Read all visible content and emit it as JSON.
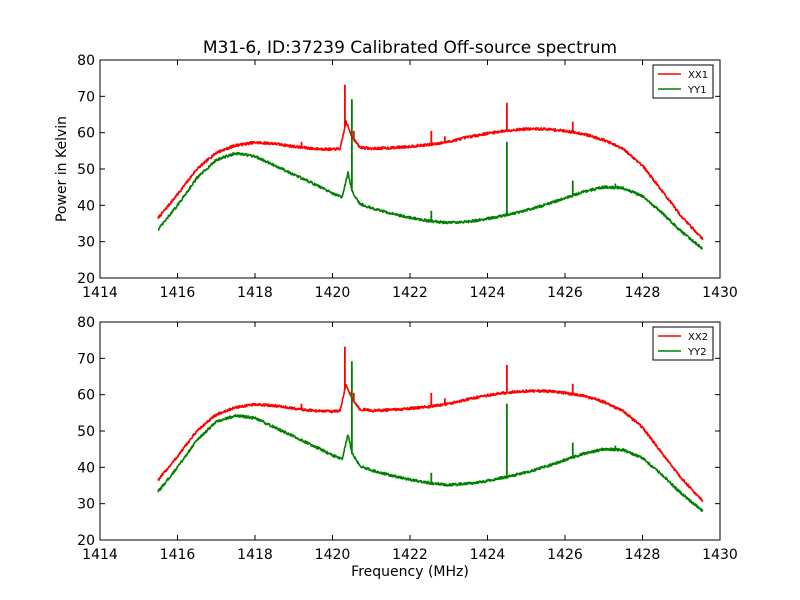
{
  "title": "M31-6, ID:37239 Calibrated Off-source spectrum",
  "colors": {
    "xx": "#ff0000",
    "yy": "#008000"
  },
  "chart_data": [
    {
      "type": "line",
      "xlabel": "",
      "ylabel": "Power in Kelvin",
      "xlim": [
        1414,
        1430
      ],
      "ylim": [
        20,
        80
      ],
      "xticks": [
        "1414",
        "1416",
        "1418",
        "1420",
        "1422",
        "1424",
        "1426",
        "1428",
        "1430"
      ],
      "yticks": [
        "20",
        "30",
        "40",
        "50",
        "60",
        "70",
        "80"
      ],
      "legend": "top-right",
      "series": [
        {
          "name": "XX1",
          "color": "#ff0000",
          "points": [
            [
              1415.5,
              36.5
            ],
            [
              1416.0,
              43
            ],
            [
              1416.5,
              50
            ],
            [
              1417.0,
              54.5
            ],
            [
              1417.5,
              56.5
            ],
            [
              1418.0,
              57.3
            ],
            [
              1418.5,
              57
            ],
            [
              1419.0,
              56.2
            ],
            [
              1419.5,
              55.6
            ],
            [
              1420.0,
              55.4
            ],
            [
              1420.2,
              55.6
            ],
            [
              1420.35,
              63
            ],
            [
              1420.5,
              59
            ],
            [
              1420.7,
              56
            ],
            [
              1421.0,
              55.6
            ],
            [
              1421.5,
              55.8
            ],
            [
              1422.0,
              56.2
            ],
            [
              1422.5,
              56.7
            ],
            [
              1423.0,
              57.5
            ],
            [
              1423.5,
              58.8
            ],
            [
              1424.0,
              59.8
            ],
            [
              1424.5,
              60.6
            ],
            [
              1425.0,
              61
            ],
            [
              1425.5,
              61
            ],
            [
              1426.0,
              60.5
            ],
            [
              1426.5,
              59.6
            ],
            [
              1427.0,
              58
            ],
            [
              1427.5,
              55.5
            ],
            [
              1428.0,
              51
            ],
            [
              1428.5,
              44
            ],
            [
              1429.0,
              37
            ],
            [
              1429.55,
              30.8
            ]
          ],
          "spikes": [
            [
              1419.2,
              57.5
            ],
            [
              1420.32,
              73.2
            ],
            [
              1420.55,
              60.5
            ],
            [
              1422.55,
              60.5
            ],
            [
              1422.9,
              59
            ],
            [
              1424.5,
              68.2
            ],
            [
              1426.2,
              63
            ]
          ]
        },
        {
          "name": "YY1",
          "color": "#008000",
          "points": [
            [
              1415.5,
              33.3
            ],
            [
              1416.0,
              40
            ],
            [
              1416.5,
              47.5
            ],
            [
              1417.0,
              52.5
            ],
            [
              1417.5,
              54.3
            ],
            [
              1418.0,
              53.5
            ],
            [
              1418.5,
              51
            ],
            [
              1419.0,
              48.5
            ],
            [
              1419.5,
              46
            ],
            [
              1420.0,
              43.3
            ],
            [
              1420.25,
              42.2
            ],
            [
              1420.4,
              49
            ],
            [
              1420.5,
              44
            ],
            [
              1420.7,
              40.5
            ],
            [
              1421.0,
              39.2
            ],
            [
              1421.5,
              37.8
            ],
            [
              1422.0,
              36.6
            ],
            [
              1422.5,
              35.7
            ],
            [
              1423.0,
              35.2
            ],
            [
              1423.5,
              35.5
            ],
            [
              1424.0,
              36.3
            ],
            [
              1424.5,
              37.4
            ],
            [
              1425.0,
              38.6
            ],
            [
              1425.5,
              40.2
            ],
            [
              1426.0,
              42
            ],
            [
              1426.5,
              43.8
            ],
            [
              1427.0,
              45
            ],
            [
              1427.5,
              44.8
            ],
            [
              1428.0,
              42.5
            ],
            [
              1428.5,
              38
            ],
            [
              1429.0,
              32.8
            ],
            [
              1429.55,
              28
            ]
          ],
          "spikes": [
            [
              1420.5,
              69.2
            ],
            [
              1422.55,
              38.5
            ],
            [
              1424.5,
              57.5
            ],
            [
              1426.2,
              46.8
            ],
            [
              1427.3,
              46
            ]
          ]
        }
      ]
    },
    {
      "type": "line",
      "xlabel": "Frequency (MHz)",
      "ylabel": "",
      "xlim": [
        1414,
        1430
      ],
      "ylim": [
        20,
        80
      ],
      "xticks": [
        "1414",
        "1416",
        "1418",
        "1420",
        "1422",
        "1424",
        "1426",
        "1428",
        "1430"
      ],
      "yticks": [
        "20",
        "30",
        "40",
        "50",
        "60",
        "70",
        "80"
      ],
      "legend": "top-right",
      "series": [
        {
          "name": "XX2",
          "color": "#ff0000",
          "points": [
            [
              1415.5,
              36.5
            ],
            [
              1416.0,
              43
            ],
            [
              1416.5,
              50
            ],
            [
              1417.0,
              54.5
            ],
            [
              1417.5,
              56.5
            ],
            [
              1418.0,
              57.3
            ],
            [
              1418.5,
              57
            ],
            [
              1419.0,
              56.2
            ],
            [
              1419.5,
              55.6
            ],
            [
              1420.0,
              55.4
            ],
            [
              1420.2,
              55.6
            ],
            [
              1420.35,
              63
            ],
            [
              1420.5,
              59
            ],
            [
              1420.7,
              56
            ],
            [
              1421.0,
              55.6
            ],
            [
              1421.5,
              55.8
            ],
            [
              1422.0,
              56.2
            ],
            [
              1422.5,
              56.7
            ],
            [
              1423.0,
              57.5
            ],
            [
              1423.5,
              58.8
            ],
            [
              1424.0,
              59.8
            ],
            [
              1424.5,
              60.6
            ],
            [
              1425.0,
              61
            ],
            [
              1425.5,
              61
            ],
            [
              1426.0,
              60.5
            ],
            [
              1426.5,
              59.6
            ],
            [
              1427.0,
              58
            ],
            [
              1427.5,
              55.5
            ],
            [
              1428.0,
              51
            ],
            [
              1428.5,
              44
            ],
            [
              1429.0,
              37
            ],
            [
              1429.55,
              30.8
            ]
          ],
          "spikes": [
            [
              1419.2,
              57.5
            ],
            [
              1420.32,
              73.2
            ],
            [
              1420.55,
              60.5
            ],
            [
              1422.55,
              60.5
            ],
            [
              1422.9,
              59
            ],
            [
              1424.5,
              68.2
            ],
            [
              1426.2,
              63
            ]
          ]
        },
        {
          "name": "YY2",
          "color": "#008000",
          "points": [
            [
              1415.5,
              33.3
            ],
            [
              1416.0,
              40
            ],
            [
              1416.5,
              47.5
            ],
            [
              1417.0,
              52.5
            ],
            [
              1417.5,
              54.3
            ],
            [
              1418.0,
              53.5
            ],
            [
              1418.5,
              51
            ],
            [
              1419.0,
              48.5
            ],
            [
              1419.5,
              46
            ],
            [
              1420.0,
              43.3
            ],
            [
              1420.25,
              42.2
            ],
            [
              1420.4,
              49
            ],
            [
              1420.5,
              44
            ],
            [
              1420.7,
              40.5
            ],
            [
              1421.0,
              39.2
            ],
            [
              1421.5,
              37.8
            ],
            [
              1422.0,
              36.6
            ],
            [
              1422.5,
              35.7
            ],
            [
              1423.0,
              35.2
            ],
            [
              1423.5,
              35.5
            ],
            [
              1424.0,
              36.3
            ],
            [
              1424.5,
              37.4
            ],
            [
              1425.0,
              38.6
            ],
            [
              1425.5,
              40.2
            ],
            [
              1426.0,
              42
            ],
            [
              1426.5,
              43.8
            ],
            [
              1427.0,
              45
            ],
            [
              1427.5,
              44.8
            ],
            [
              1428.0,
              42.5
            ],
            [
              1428.5,
              38
            ],
            [
              1429.0,
              32.8
            ],
            [
              1429.55,
              28
            ]
          ],
          "spikes": [
            [
              1420.5,
              69.2
            ],
            [
              1422.55,
              38.5
            ],
            [
              1424.5,
              57.5
            ],
            [
              1426.2,
              46.8
            ],
            [
              1427.3,
              46
            ]
          ]
        }
      ]
    }
  ]
}
